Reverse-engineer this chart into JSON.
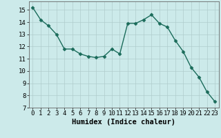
{
  "x": [
    0,
    1,
    2,
    3,
    4,
    5,
    6,
    7,
    8,
    9,
    10,
    11,
    12,
    13,
    14,
    15,
    16,
    17,
    18,
    19,
    20,
    21,
    22,
    23
  ],
  "y": [
    15.2,
    14.2,
    13.7,
    13.0,
    11.8,
    11.8,
    11.4,
    11.2,
    11.1,
    11.2,
    11.8,
    11.4,
    13.9,
    13.9,
    14.2,
    14.6,
    13.9,
    13.6,
    12.5,
    11.6,
    10.3,
    9.5,
    8.3,
    7.5
  ],
  "line_color": "#1a6b5a",
  "marker": "D",
  "marker_size": 2.5,
  "bg_color": "#cceaea",
  "grid_color": "#b0cccc",
  "xlabel": "Humidex (Indice chaleur)",
  "xlim": [
    -0.5,
    23.5
  ],
  "ylim": [
    7,
    15.7
  ],
  "yticks": [
    7,
    8,
    9,
    10,
    11,
    12,
    13,
    14,
    15
  ],
  "xticks": [
    0,
    1,
    2,
    3,
    4,
    5,
    6,
    7,
    8,
    9,
    10,
    11,
    12,
    13,
    14,
    15,
    16,
    17,
    18,
    19,
    20,
    21,
    22,
    23
  ],
  "xlabel_fontsize": 7.5,
  "tick_fontsize": 6.5
}
